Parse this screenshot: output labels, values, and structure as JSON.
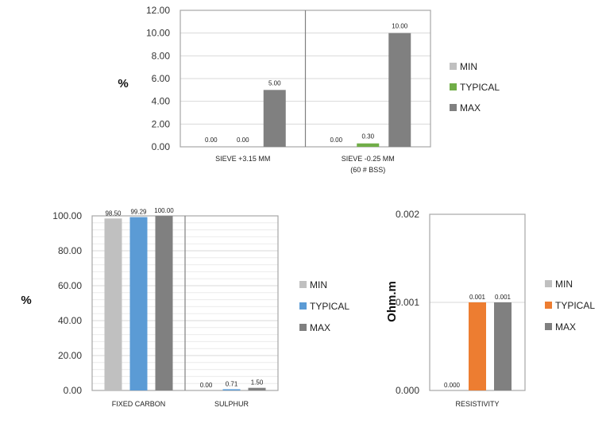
{
  "colors": {
    "min": "#c0c0c0",
    "typical_green": "#70ad47",
    "typical_blue": "#5b9bd5",
    "typical_orange": "#ed7d31",
    "max": "#808080"
  },
  "chart_data": [
    {
      "type": "bar",
      "ylabel": "%",
      "ylim": [
        0,
        12
      ],
      "yticks": [
        "0.00",
        "2.00",
        "4.00",
        "6.00",
        "8.00",
        "10.00",
        "12.00"
      ],
      "categories": [
        "SIEVE +3.15 MM",
        "SIEVE -0.25 MM"
      ],
      "category_sublabels": [
        "",
        "(60 # BSS)"
      ],
      "series": [
        {
          "name": "MIN",
          "color": "#c0c0c0",
          "values": [
            0.0,
            0.0
          ],
          "labels": [
            "0.00",
            "0.00"
          ]
        },
        {
          "name": "TYPICAL",
          "color": "#70ad47",
          "values": [
            0.0,
            0.3
          ],
          "labels": [
            "0.00",
            "0.30"
          ]
        },
        {
          "name": "MAX",
          "color": "#808080",
          "values": [
            5.0,
            10.0
          ],
          "labels": [
            "5.00",
            "10.00"
          ]
        }
      ],
      "legend": "right"
    },
    {
      "type": "bar",
      "ylabel": "%",
      "ylim": [
        0,
        100
      ],
      "yticks": [
        "0.00",
        "20.00",
        "40.00",
        "60.00",
        "80.00",
        "100.00"
      ],
      "categories": [
        "FIXED CARBON",
        "SULPHUR"
      ],
      "series": [
        {
          "name": "MIN",
          "color": "#c0c0c0",
          "values": [
            98.5,
            0.0
          ],
          "labels": [
            "98.50",
            "0.00"
          ]
        },
        {
          "name": "TYPICAL",
          "color": "#5b9bd5",
          "values": [
            99.29,
            0.71
          ],
          "labels": [
            "99.29",
            "0.71"
          ]
        },
        {
          "name": "MAX",
          "color": "#808080",
          "values": [
            100.0,
            1.5
          ],
          "labels": [
            "100.00",
            "1.50"
          ]
        }
      ],
      "legend": "right"
    },
    {
      "type": "bar",
      "ylabel": "Ohm.m",
      "ylim": [
        0,
        0.002
      ],
      "yticks": [
        "0.000",
        "0.001",
        "0.002"
      ],
      "categories": [
        "RESISTIVITY"
      ],
      "series": [
        {
          "name": "MIN",
          "color": "#c0c0c0",
          "values": [
            0.0
          ],
          "labels": [
            "0.000"
          ]
        },
        {
          "name": "TYPICAL",
          "color": "#ed7d31",
          "values": [
            0.001
          ],
          "labels": [
            "0.001"
          ]
        },
        {
          "name": "MAX",
          "color": "#808080",
          "values": [
            0.001
          ],
          "labels": [
            "0.001"
          ]
        }
      ],
      "legend": "right"
    }
  ]
}
